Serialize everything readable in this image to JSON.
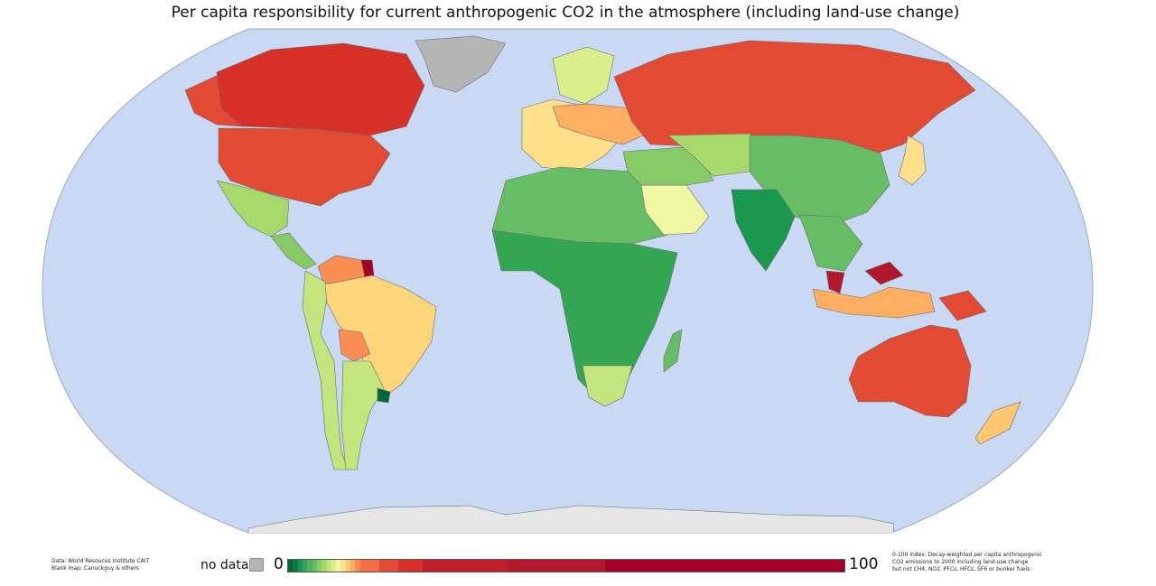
{
  "title": "Per capita responsibility for current anthropogenic CO2 in the atmosphere (including land-use change)",
  "credits": {
    "line1": "Data: World Resouces Institute CAIT",
    "line2": "Blank map: Canuckguy & others"
  },
  "legend": {
    "nodata_label": "no data",
    "nodata_color": "#b5b5b5",
    "min_label": "0",
    "max_label": "100",
    "scale_colors": [
      "#006837",
      "#0d7a3f",
      "#1a9850",
      "#33a654",
      "#4cb35a",
      "#66bd63",
      "#86cb66",
      "#a6d96a",
      "#c3e57d",
      "#d9ef8b",
      "#f0f7a3",
      "#fee08b",
      "#fdc772",
      "#fdae61",
      "#f98e52",
      "#f46d43",
      "#e34a33",
      "#d73027",
      "#c21d2a",
      "#b2182b",
      "#a50026"
    ],
    "scale_weights": [
      1,
      1,
      1,
      1,
      1,
      1,
      1,
      1,
      1,
      1,
      1,
      1,
      1,
      1,
      1,
      4,
      4,
      5,
      18,
      20,
      50
    ],
    "note_lines": [
      "0-100 index: Decay-weighted per capita anthropogenic",
      "CO2 emissions to 2000 including land-use change",
      "but not CH4, NO2, PFCs, HFCs, SF6 or bunker fuels."
    ]
  },
  "map": {
    "ocean_color": "#c9d9f3",
    "antarctica_color": "#e6e6e6",
    "regions": [
      {
        "id": "canada",
        "color": "#d73027"
      },
      {
        "id": "usa",
        "color": "#e34a33"
      },
      {
        "id": "alaska",
        "color": "#e34a33"
      },
      {
        "id": "mexico",
        "color": "#a6d96a"
      },
      {
        "id": "central-america",
        "color": "#86cb66"
      },
      {
        "id": "greenland",
        "color": "#b5b5b5"
      },
      {
        "id": "brazil",
        "color": "#fdd57a"
      },
      {
        "id": "south-america-west",
        "color": "#c3e57d"
      },
      {
        "id": "argentina",
        "color": "#c3e57d"
      },
      {
        "id": "venezuela",
        "color": "#f98e52"
      },
      {
        "id": "guyana",
        "color": "#a50026"
      },
      {
        "id": "uruguay",
        "color": "#006837"
      },
      {
        "id": "bolivia",
        "color": "#f98e52"
      },
      {
        "id": "russia",
        "color": "#e34a33"
      },
      {
        "id": "europe-west",
        "color": "#fee08b"
      },
      {
        "id": "europe-east",
        "color": "#fdae61"
      },
      {
        "id": "scandinavia",
        "color": "#d9ef8b"
      },
      {
        "id": "north-africa",
        "color": "#66bd63"
      },
      {
        "id": "sub-saharan-africa",
        "color": "#33a654"
      },
      {
        "id": "southern-africa",
        "color": "#c3e57d"
      },
      {
        "id": "madagascar",
        "color": "#66bd63"
      },
      {
        "id": "saudi-arabia",
        "color": "#f0f7a3"
      },
      {
        "id": "middle-east",
        "color": "#86cb66"
      },
      {
        "id": "central-asia",
        "color": "#a6d96a"
      },
      {
        "id": "china",
        "color": "#66bd63"
      },
      {
        "id": "india",
        "color": "#1a9850"
      },
      {
        "id": "southeast-asia",
        "color": "#66bd63"
      },
      {
        "id": "malaysia",
        "color": "#b2182b"
      },
      {
        "id": "indonesia",
        "color": "#fdae61"
      },
      {
        "id": "papua-new-guinea",
        "color": "#e34a33"
      },
      {
        "id": "japan",
        "color": "#fee08b"
      },
      {
        "id": "australia",
        "color": "#e34a33"
      },
      {
        "id": "new-zealand",
        "color": "#fdc772"
      }
    ]
  }
}
